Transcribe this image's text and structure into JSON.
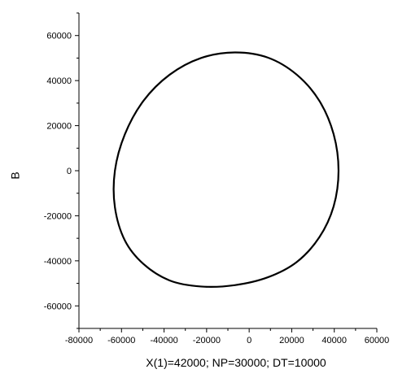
{
  "chart_data": {
    "type": "line",
    "title": "",
    "xlabel": "X(1)=42000; NP=30000; DT=10000",
    "ylabel": "B",
    "xlim": [
      -80000,
      60000
    ],
    "ylim": [
      -70000,
      70000
    ],
    "x_ticks": [
      -80000,
      -60000,
      -40000,
      -20000,
      0,
      20000,
      40000,
      60000
    ],
    "y_ticks": [
      -60000,
      -40000,
      -20000,
      0,
      20000,
      40000,
      60000
    ],
    "x_tick_labels": [
      "-80000",
      "-60000",
      "-40000",
      "-20000",
      "0",
      "20000",
      "40000",
      "60000"
    ],
    "y_tick_labels": [
      "-60000",
      "-40000",
      "-20000",
      "0",
      "20000",
      "40000",
      "60000"
    ],
    "grid": false,
    "series": [
      {
        "line_color": "#000000",
        "shape": "closed-loop",
        "x": [
          42000,
          39700,
          33000,
          22400,
          8800,
          -6800,
          -22700,
          -37400,
          -49700,
          -58400,
          -63100,
          -63100,
          -58400,
          -49700,
          -37400,
          -22700,
          -6800,
          8800,
          22400,
          33000,
          39700,
          42000
        ],
        "y": [
          0,
          16200,
          31000,
          42600,
          50200,
          52500,
          50000,
          42600,
          31000,
          16200,
          0,
          -16200,
          -31000,
          -41400,
          -48700,
          -51400,
          -50800,
          -47300,
          -40500,
          -29500,
          -15800,
          0
        ]
      }
    ]
  }
}
